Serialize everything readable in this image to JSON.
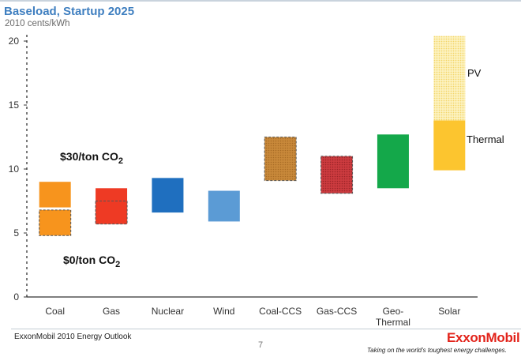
{
  "header": {
    "title": "Baseload, Startup 2025",
    "subtitle": "2010 cents/kWh"
  },
  "footer": {
    "source": "ExxonMobil 2010 Energy Outlook",
    "page_number": "7",
    "logo": "ExxonMobil",
    "tagline": "Taking on the world's toughest energy challenges."
  },
  "colors": {
    "coal": "#f7941d",
    "gas": "#ee3a24",
    "nuclear": "#1f6fbf",
    "wind": "#5b9bd5",
    "coal_ccs": "#c8893a",
    "gas_ccs": "#cc3b3f",
    "geothermal": "#14a84a",
    "solar_thermal": "#fcc52f",
    "solar_pv": "#fbeaa0"
  },
  "chart_data": {
    "type": "bar",
    "subtype": "floating-range",
    "title": "Baseload, Startup 2025",
    "ylabel": "2010 cents/kWh",
    "ylim": [
      0,
      20
    ],
    "yticks": [
      "0",
      "5",
      "10",
      "15",
      "20"
    ],
    "grid": false,
    "categories": [
      "Coal",
      "Gas",
      "Nuclear",
      "Wind",
      "Coal-CCS",
      "Gas-CCS",
      "Geo-Thermal",
      "Solar"
    ],
    "category_labels": [
      [
        "Coal"
      ],
      [
        "Gas"
      ],
      [
        "Nuclear"
      ],
      [
        "Wind"
      ],
      [
        "Coal-CCS"
      ],
      [
        "Gas-CCS"
      ],
      [
        "Geo-",
        "Thermal"
      ],
      [
        "Solar"
      ]
    ],
    "ranges": [
      {
        "category": "Coal",
        "scenario": "$30/ton CO2",
        "low": 7.0,
        "high": 9.0,
        "color": "#f7941d",
        "style": "solid"
      },
      {
        "category": "Coal",
        "scenario": "$0/ton CO2",
        "low": 4.8,
        "high": 6.8,
        "color": "#f7941d",
        "style": "dashed"
      },
      {
        "category": "Gas",
        "scenario": "$30/ton CO2",
        "low": 5.7,
        "high": 8.5,
        "color": "#ee3a24",
        "style": "solid"
      },
      {
        "category": "Gas",
        "scenario": "$0/ton CO2",
        "low": 5.7,
        "high": 7.5,
        "color": "#ee3a24",
        "style": "dashed"
      },
      {
        "category": "Nuclear",
        "low": 6.6,
        "high": 9.3,
        "color": "#1f6fbf",
        "style": "solid"
      },
      {
        "category": "Wind",
        "low": 5.9,
        "high": 8.3,
        "color": "#5b9bd5",
        "style": "solid"
      },
      {
        "category": "Coal-CCS",
        "low": 9.1,
        "high": 12.5,
        "color": "#c8893a",
        "style": "dashed"
      },
      {
        "category": "Gas-CCS",
        "low": 8.1,
        "high": 11.0,
        "color": "#cc3b3f",
        "style": "dashed"
      },
      {
        "category": "Geo-Thermal",
        "low": 8.5,
        "high": 12.7,
        "color": "#14a84a",
        "style": "solid"
      },
      {
        "category": "Solar",
        "scenario": "Thermal",
        "low": 9.9,
        "high": 13.8,
        "color": "#fcc52f",
        "style": "solid"
      },
      {
        "category": "Solar",
        "scenario": "PV",
        "low": 13.8,
        "high": 20.4,
        "color": "#fbeaa0",
        "style": "dotted"
      }
    ],
    "annotations": [
      {
        "text": "$30/ton CO",
        "sub": "2"
      },
      {
        "text": "$0/ton CO",
        "sub": "2"
      },
      {
        "text": "PV"
      },
      {
        "text": "Thermal"
      }
    ]
  }
}
